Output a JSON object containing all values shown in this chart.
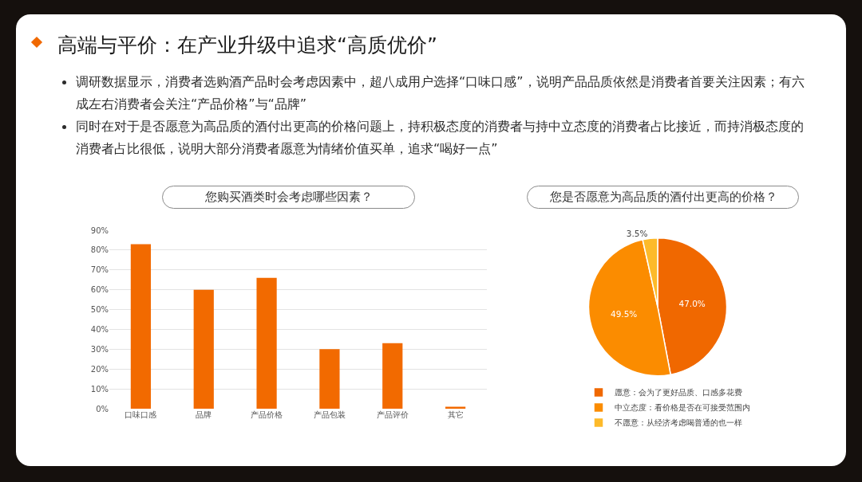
{
  "chart_data": [
    {
      "type": "other",
      "title": "高端与平价：在产业升级中追求“高质优价”",
      "annotations": [
        "调研数据显示，消费者选购酒产品时会考虑因素中，超八成用户选择“口味口感”，说明产品品质依然是消费者首要关注因素；有六成左右消费者会关注“产品价格”与“品牌”",
        "同时在对于是否愿意为高品质的酒付出更高的价格问题上，持积极态度的消费者与持中立态度的消费者占比接近，而持消极态度的消费者占比很低，说明大部分消费者愿意为情绪价值买单，追求“喝好一点”"
      ]
    },
    {
      "type": "bar",
      "title": "您购买酒类时会考虑哪些因素？",
      "categories": [
        "口味口感",
        "品牌",
        "产品价格",
        "产品包装",
        "产品评价",
        "其它"
      ],
      "values": [
        83,
        60,
        66,
        30,
        33,
        1
      ],
      "color": "#f26a00",
      "ylim": [
        0,
        90
      ],
      "yticks": [
        {
          "value": 0,
          "label": "0%"
        },
        {
          "value": 10,
          "label": "10%"
        },
        {
          "value": 20,
          "label": "20%"
        },
        {
          "value": 30,
          "label": "30%"
        },
        {
          "value": 40,
          "label": "40%"
        },
        {
          "value": 50,
          "label": "50%"
        },
        {
          "value": 60,
          "label": "60%"
        },
        {
          "value": 70,
          "label": "70%"
        },
        {
          "value": 80,
          "label": "80%"
        },
        {
          "value": 90,
          "label": "90%"
        }
      ],
      "grid": "y"
    },
    {
      "type": "pie",
      "title": "您是否愿意为高品质的酒付出更高的价格？",
      "categories": [
        "愿意：会为了更好品质、口感多花费",
        "中立态度：看价格是否在可接受范围内",
        "不愿意：从经济考虑喝普通的也一样"
      ],
      "values": [
        47.0,
        49.5,
        3.5
      ],
      "colors": [
        "#f06800",
        "#fb8c00",
        "#fdba2a"
      ],
      "value_labels": [
        "47.0%",
        "49.5%",
        "3.5%"
      ],
      "legend": "bottom"
    }
  ]
}
